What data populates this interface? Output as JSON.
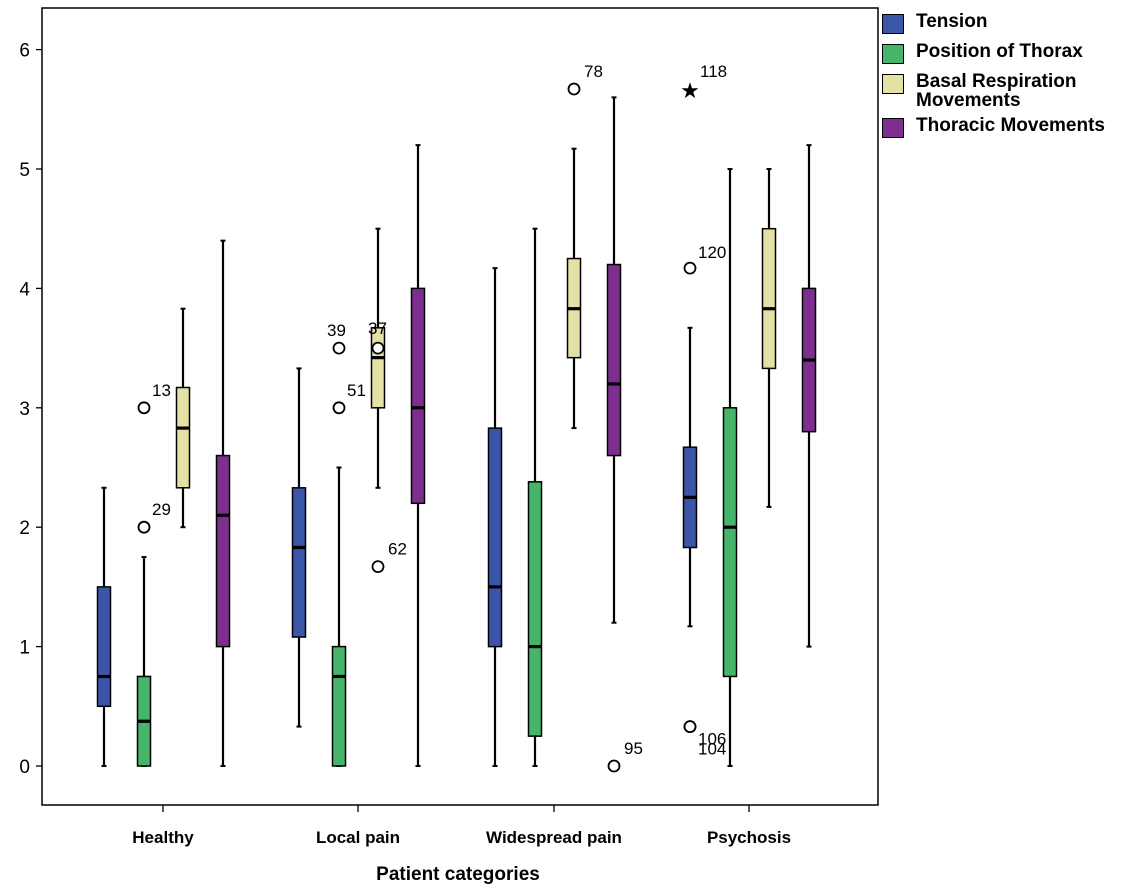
{
  "chart_data": {
    "type": "boxplot",
    "xlabel": "Patient categories",
    "ylabel": "",
    "ylim": [
      -0.3,
      6.35
    ],
    "yticks": [
      0,
      1,
      2,
      3,
      4,
      5,
      6
    ],
    "categories": [
      "Healthy",
      "Local pain",
      "Widespread pain",
      "Psychosis"
    ],
    "legend": {
      "position": "right"
    },
    "series": [
      {
        "name": "Tension",
        "color": "#3b55a8",
        "boxes": [
          {
            "whisker_low": 0,
            "q1": 0.5,
            "median": 0.75,
            "q3": 1.5,
            "whisker_high": 2.33,
            "outliers": []
          },
          {
            "whisker_low": 0.33,
            "q1": 1.08,
            "median": 1.83,
            "q3": 2.33,
            "whisker_high": 3.33,
            "outliers": []
          },
          {
            "whisker_low": 0,
            "q1": 1.0,
            "median": 1.5,
            "q3": 2.83,
            "whisker_high": 4.17,
            "outliers": []
          },
          {
            "whisker_low": 1.17,
            "q1": 1.83,
            "median": 2.25,
            "q3": 2.67,
            "whisker_high": 3.67,
            "outliers": [
              {
                "value": 5.67,
                "marker": "star",
                "label": "118"
              },
              {
                "value": 4.17,
                "marker": "circle",
                "label": "120"
              },
              {
                "value": 0.33,
                "marker": "circle",
                "label": "106"
              },
              {
                "value": 0.33,
                "marker": "circle",
                "label": "104"
              }
            ]
          }
        ]
      },
      {
        "name": "Position of Thorax",
        "color": "#46b56a",
        "boxes": [
          {
            "whisker_low": 0,
            "q1": 0,
            "median": 0.375,
            "q3": 0.75,
            "whisker_high": 1.75,
            "outliers": [
              {
                "value": 3.0,
                "marker": "circle",
                "label": "13"
              },
              {
                "value": 2.0,
                "marker": "circle",
                "label": "29"
              }
            ]
          },
          {
            "whisker_low": 0,
            "q1": 0,
            "median": 0.75,
            "q3": 1.0,
            "whisker_high": 2.5,
            "outliers": [
              {
                "value": 3.5,
                "marker": "circle",
                "label": "39"
              },
              {
                "value": 3.0,
                "marker": "circle",
                "label": "51"
              }
            ]
          },
          {
            "whisker_low": 0,
            "q1": 0.25,
            "median": 1.0,
            "q3": 2.38,
            "whisker_high": 4.5,
            "outliers": []
          },
          {
            "whisker_low": 0,
            "q1": 0.75,
            "median": 2.0,
            "q3": 3.0,
            "whisker_high": 5.0,
            "outliers": []
          }
        ]
      },
      {
        "name": "Basal Respiration Movements",
        "name_lines": [
          "Basal Respiration",
          "Movements"
        ],
        "color": "#e4e1a6",
        "boxes": [
          {
            "whisker_low": 2.0,
            "q1": 2.33,
            "median": 2.83,
            "q3": 3.17,
            "whisker_high": 3.83,
            "outliers": []
          },
          {
            "whisker_low": 2.33,
            "q1": 3.0,
            "median": 3.42,
            "q3": 3.67,
            "whisker_high": 4.5,
            "outliers": [
              {
                "value": 3.5,
                "marker": "circle",
                "label": "37"
              },
              {
                "value": 1.67,
                "marker": "circle",
                "label": "62"
              }
            ]
          },
          {
            "whisker_low": 2.83,
            "q1": 3.42,
            "median": 3.83,
            "q3": 4.25,
            "whisker_high": 5.17,
            "outliers": [
              {
                "value": 5.67,
                "marker": "circle",
                "label": "78"
              }
            ]
          },
          {
            "whisker_low": 2.17,
            "q1": 3.33,
            "median": 3.83,
            "q3": 4.5,
            "whisker_high": 5.0,
            "outliers": []
          }
        ]
      },
      {
        "name": "Thoracic Movements",
        "color": "#7e2f8e",
        "boxes": [
          {
            "whisker_low": 0,
            "q1": 1.0,
            "median": 2.1,
            "q3": 2.6,
            "whisker_high": 4.4,
            "outliers": []
          },
          {
            "whisker_low": 0,
            "q1": 2.2,
            "median": 3.0,
            "q3": 4.0,
            "whisker_high": 5.2,
            "outliers": []
          },
          {
            "whisker_low": 1.2,
            "q1": 2.6,
            "median": 3.2,
            "q3": 4.2,
            "whisker_high": 5.6,
            "outliers": [
              {
                "value": 0,
                "marker": "circle",
                "label": "95"
              }
            ]
          },
          {
            "whisker_low": 1.0,
            "q1": 2.8,
            "median": 3.4,
            "q3": 4.0,
            "whisker_high": 5.2,
            "outliers": []
          }
        ]
      }
    ]
  }
}
